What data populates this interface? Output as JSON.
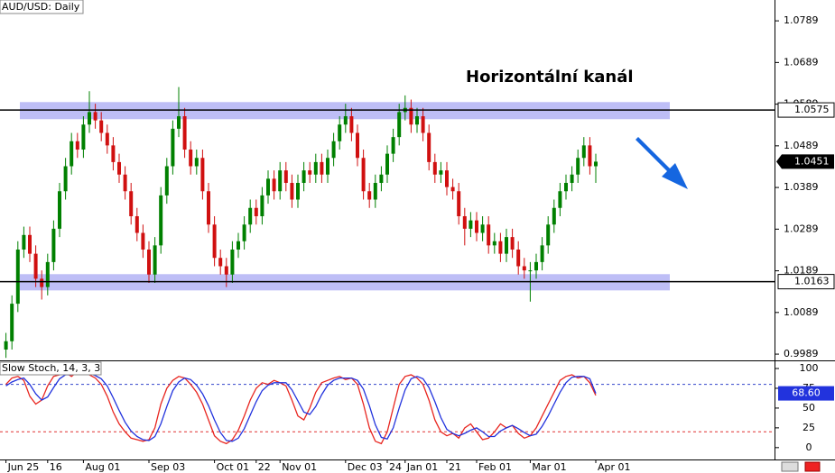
{
  "chart_data": [
    {
      "type": "candlestick",
      "title": "AUD/USD: Daily",
      "annotation": "Horizontální kanál",
      "up_color": "#008000",
      "down_color": "#d01010",
      "xlim": [
        -1,
        129
      ],
      "ylim": [
        0.9974,
        1.0839
      ],
      "yticks": [
        0.9989,
        1.0089,
        1.0189,
        1.0289,
        1.0389,
        1.0489,
        1.0589,
        1.0689,
        1.0789
      ],
      "levels": [
        1.0575,
        1.0163
      ],
      "last_price": 1.0451,
      "channel_bands": [
        [
          1.0553,
          1.0594
        ],
        [
          1.0142,
          1.0181
        ]
      ],
      "band_color": "#b3b3f5",
      "open": [
        1.0,
        1.002,
        1.011,
        1.024,
        1.0275,
        1.023,
        1.017,
        1.015,
        1.021,
        1.029,
        1.038,
        1.044,
        1.05,
        1.048,
        1.054,
        1.057,
        1.055,
        1.052,
        1.049,
        1.045,
        1.042,
        1.038,
        1.032,
        1.028,
        1.024,
        1.018,
        1.025,
        1.037,
        1.044,
        1.053,
        1.056,
        1.048,
        1.044,
        1.046,
        1.038,
        1.03,
        1.022,
        1.02,
        1.018,
        1.024,
        1.026,
        1.03,
        1.034,
        1.032,
        1.037,
        1.041,
        1.038,
        1.043,
        1.04,
        1.036,
        1.04,
        1.043,
        1.042,
        1.045,
        1.042,
        1.046,
        1.05,
        1.054,
        1.056,
        1.052,
        1.046,
        1.038,
        1.036,
        1.04,
        1.042,
        1.047,
        1.051,
        1.057,
        1.058,
        1.054,
        1.056,
        1.052,
        1.045,
        1.042,
        1.043,
        1.039,
        1.038,
        1.032,
        1.029,
        1.031,
        1.028,
        1.03,
        1.025,
        1.026,
        1.023,
        1.027,
        1.024,
        1.02,
        1.019,
        1.019,
        1.021,
        1.025,
        1.03,
        1.034,
        1.038,
        1.04,
        1.042,
        1.046,
        1.049,
        1.044
      ],
      "high": [
        1.004,
        1.013,
        1.026,
        1.0295,
        1.0295,
        1.025,
        1.019,
        1.023,
        1.031,
        1.04,
        1.046,
        1.052,
        1.052,
        1.056,
        1.062,
        1.059,
        1.057,
        1.054,
        1.051,
        1.047,
        1.044,
        1.04,
        1.034,
        1.03,
        1.026,
        1.027,
        1.039,
        1.046,
        1.055,
        1.063,
        1.058,
        1.05,
        1.048,
        1.048,
        1.04,
        1.032,
        1.024,
        1.022,
        1.026,
        1.028,
        1.032,
        1.036,
        1.036,
        1.039,
        1.043,
        1.043,
        1.045,
        1.045,
        1.042,
        1.042,
        1.045,
        1.045,
        1.047,
        1.047,
        1.048,
        1.052,
        1.056,
        1.059,
        1.058,
        1.054,
        1.048,
        1.04,
        1.042,
        1.044,
        1.049,
        1.053,
        1.059,
        1.061,
        1.06,
        1.058,
        1.058,
        1.054,
        1.047,
        1.045,
        1.045,
        1.041,
        1.04,
        1.034,
        1.033,
        1.033,
        1.032,
        1.032,
        1.028,
        1.028,
        1.029,
        1.029,
        1.026,
        1.022,
        1.021,
        1.023,
        1.027,
        1.032,
        1.036,
        1.04,
        1.042,
        1.044,
        1.048,
        1.051,
        1.051,
        1.047
      ],
      "low": [
        0.998,
        1.0,
        1.009,
        1.022,
        1.021,
        1.015,
        1.012,
        1.013,
        1.019,
        1.027,
        1.036,
        1.042,
        1.046,
        1.046,
        1.052,
        1.053,
        1.05,
        1.047,
        1.043,
        1.04,
        1.036,
        1.03,
        1.026,
        1.022,
        1.016,
        1.016,
        1.023,
        1.035,
        1.042,
        1.051,
        1.046,
        1.042,
        1.042,
        1.036,
        1.028,
        1.02,
        1.018,
        1.015,
        1.016,
        1.022,
        1.024,
        1.028,
        1.03,
        1.03,
        1.035,
        1.036,
        1.036,
        1.038,
        1.034,
        1.034,
        1.038,
        1.04,
        1.04,
        1.04,
        1.04,
        1.044,
        1.048,
        1.052,
        1.05,
        1.044,
        1.036,
        1.034,
        1.034,
        1.038,
        1.04,
        1.045,
        1.049,
        1.055,
        1.052,
        1.052,
        1.05,
        1.043,
        1.04,
        1.04,
        1.037,
        1.036,
        1.03,
        1.025,
        1.027,
        1.026,
        1.026,
        1.023,
        1.023,
        1.021,
        1.021,
        1.022,
        1.018,
        1.017,
        1.0115,
        1.017,
        1.019,
        1.023,
        1.028,
        1.032,
        1.036,
        1.038,
        1.04,
        1.044,
        1.042,
        1.04
      ],
      "close": [
        1.002,
        1.011,
        1.024,
        1.0275,
        1.023,
        1.017,
        1.015,
        1.021,
        1.029,
        1.038,
        1.044,
        1.05,
        1.048,
        1.054,
        1.057,
        1.055,
        1.052,
        1.049,
        1.045,
        1.042,
        1.038,
        1.032,
        1.028,
        1.024,
        1.018,
        1.025,
        1.037,
        1.044,
        1.053,
        1.056,
        1.048,
        1.044,
        1.046,
        1.038,
        1.03,
        1.022,
        1.02,
        1.018,
        1.024,
        1.026,
        1.03,
        1.034,
        1.032,
        1.037,
        1.041,
        1.038,
        1.043,
        1.04,
        1.036,
        1.04,
        1.043,
        1.042,
        1.045,
        1.042,
        1.046,
        1.05,
        1.054,
        1.056,
        1.052,
        1.046,
        1.038,
        1.036,
        1.04,
        1.042,
        1.047,
        1.051,
        1.057,
        1.058,
        1.054,
        1.056,
        1.052,
        1.045,
        1.042,
        1.043,
        1.039,
        1.038,
        1.032,
        1.029,
        1.031,
        1.028,
        1.03,
        1.025,
        1.026,
        1.023,
        1.027,
        1.024,
        1.02,
        1.019,
        1.019,
        1.021,
        1.025,
        1.03,
        1.034,
        1.038,
        1.04,
        1.042,
        1.046,
        1.049,
        1.044,
        1.0451
      ]
    },
    {
      "type": "line",
      "title": "Slow Stoch, 14, 3, 3",
      "xlim": [
        -1,
        129
      ],
      "ylim": [
        -15,
        108
      ],
      "yticks": [
        0,
        25,
        50,
        75,
        100
      ],
      "xticks": [
        {
          "value": 0,
          "label": "Jun 25"
        },
        {
          "value": 7,
          "label": "16"
        },
        {
          "value": 13,
          "label": "Aug 01"
        },
        {
          "value": 24,
          "label": "Sep 03"
        },
        {
          "value": 35,
          "label": "Oct 01"
        },
        {
          "value": 42,
          "label": "22"
        },
        {
          "value": 46,
          "label": "Nov 01"
        },
        {
          "value": 57,
          "label": "Dec 03"
        },
        {
          "value": 64,
          "label": "24"
        },
        {
          "value": 67,
          "label": "Jan 01"
        },
        {
          "value": 74,
          "label": "21"
        },
        {
          "value": 79,
          "label": "Feb 01"
        },
        {
          "value": 88,
          "label": "Mar 01"
        },
        {
          "value": 99,
          "label": "Apr 01"
        }
      ],
      "levels": [
        80,
        20
      ],
      "level_colors": [
        "#3344cc",
        "#e03030"
      ],
      "current": {
        "value": 68.6,
        "label": "68.60"
      },
      "series": [
        {
          "color": "#e8251f",
          "values": [
            80,
            88,
            90,
            85,
            65,
            55,
            60,
            78,
            90,
            92,
            95,
            90,
            96,
            94,
            92,
            88,
            80,
            65,
            45,
            30,
            20,
            12,
            10,
            8,
            10,
            25,
            55,
            75,
            85,
            90,
            88,
            80,
            70,
            55,
            35,
            15,
            8,
            5,
            10,
            22,
            40,
            60,
            75,
            82,
            80,
            85,
            82,
            78,
            60,
            40,
            35,
            50,
            70,
            82,
            85,
            88,
            90,
            86,
            88,
            80,
            55,
            25,
            8,
            5,
            20,
            50,
            80,
            90,
            92,
            88,
            80,
            60,
            35,
            20,
            15,
            18,
            12,
            25,
            30,
            20,
            10,
            12,
            20,
            30,
            25,
            28,
            18,
            12,
            15,
            25,
            40,
            55,
            70,
            85,
            90,
            92,
            88,
            90,
            82,
            66
          ]
        },
        {
          "color": "#2233dd",
          "values": [
            78,
            83,
            86,
            88,
            80,
            68,
            60,
            64,
            76,
            87,
            92,
            92,
            94,
            93,
            94,
            91,
            87,
            78,
            63,
            47,
            32,
            21,
            14,
            10,
            9,
            14,
            30,
            52,
            72,
            83,
            88,
            86,
            79,
            68,
            53,
            35,
            19,
            9,
            8,
            12,
            24,
            41,
            58,
            72,
            79,
            82,
            82,
            82,
            73,
            59,
            45,
            42,
            52,
            67,
            79,
            85,
            88,
            88,
            88,
            85,
            74,
            53,
            29,
            13,
            11,
            25,
            50,
            73,
            87,
            90,
            87,
            76,
            58,
            38,
            23,
            18,
            15,
            18,
            22,
            25,
            20,
            14,
            14,
            21,
            25,
            28,
            24,
            19,
            15,
            17,
            27,
            40,
            55,
            70,
            82,
            89,
            90,
            90,
            87,
            68.6
          ]
        }
      ]
    }
  ]
}
